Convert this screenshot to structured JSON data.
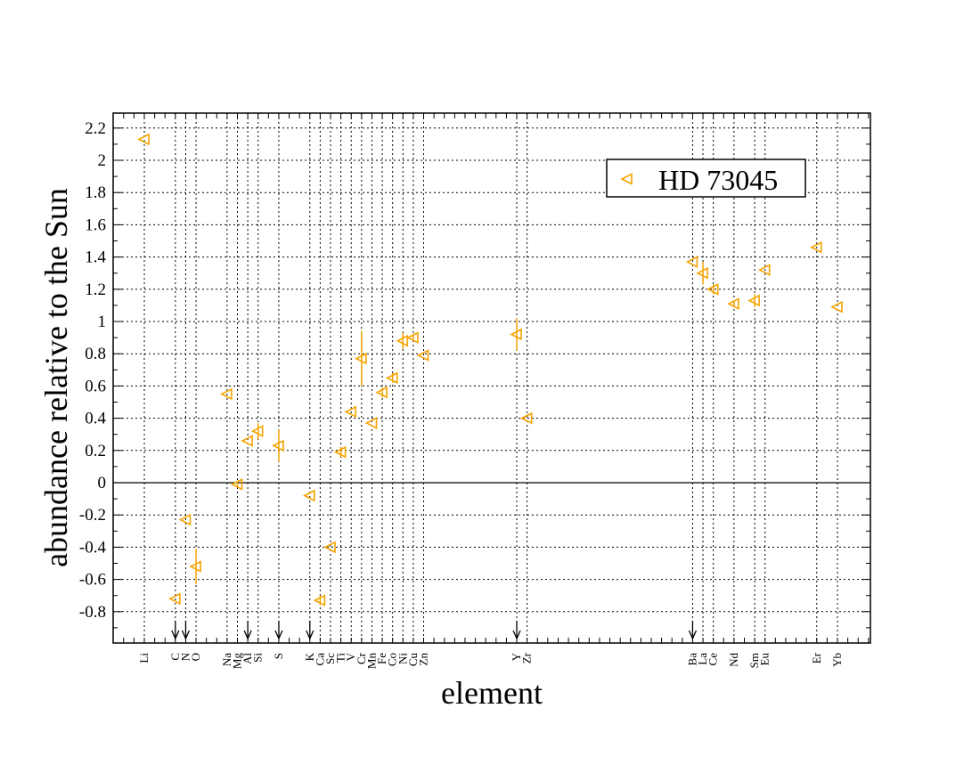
{
  "chart_data": {
    "type": "scatter",
    "xlabel": "element",
    "ylabel": "abundance relative to the Sun",
    "ylim": [
      -1.0,
      2.3
    ],
    "y_ticks": [
      "2.2",
      "2",
      "1.8",
      "1.6",
      "1.4",
      "1.2",
      "1",
      "0.8",
      "0.6",
      "0.4",
      "0.2",
      "0",
      "-0.2",
      "-0.4",
      "-0.6",
      "-0.8"
    ],
    "y_tick_values": [
      2.2,
      2.0,
      1.8,
      1.6,
      1.4,
      1.2,
      1.0,
      0.8,
      0.6,
      0.4,
      0.2,
      0.0,
      -0.2,
      -0.4,
      -0.6,
      -0.8
    ],
    "grid": true,
    "zero_line": true,
    "legend_position": "top-right",
    "series": [
      {
        "name": "HD 73045",
        "color": "#f5a300",
        "marker": "triangle-left-open",
        "points": [
          {
            "element": "C",
            "z": 6,
            "y": -0.72,
            "err": 0.0
          },
          {
            "element": "N",
            "z": 7,
            "y": -0.23,
            "err": 0.0
          },
          {
            "element": "O",
            "z": 8,
            "y": -0.52,
            "err": 0.11
          },
          {
            "element": "Na",
            "z": 11,
            "y": 0.55,
            "err": 0.0
          },
          {
            "element": "Mg",
            "z": 12,
            "y": -0.01,
            "err": 0.02
          },
          {
            "element": "Al",
            "z": 13,
            "y": 0.26,
            "err": 0.0
          },
          {
            "element": "Si",
            "z": 14,
            "y": 0.32,
            "err": 0.05
          },
          {
            "element": "S",
            "z": 16,
            "y": 0.23,
            "err": 0.1
          },
          {
            "element": "K",
            "z": 19,
            "y": -0.08,
            "err": 0.0
          },
          {
            "element": "Ca",
            "z": 20,
            "y": -0.73,
            "err": 0.03
          },
          {
            "element": "Sc",
            "z": 21,
            "y": -0.4,
            "err": 0.0
          },
          {
            "element": "Ti",
            "z": 22,
            "y": 0.19,
            "err": 0.03
          },
          {
            "element": "V",
            "z": 23,
            "y": 0.44,
            "err": 0.0
          },
          {
            "element": "Cr",
            "z": 24,
            "y": 0.77,
            "err": 0.17
          },
          {
            "element": "Mn",
            "z": 25,
            "y": 0.37,
            "err": 0.0
          },
          {
            "element": "Fe",
            "z": 26,
            "y": 0.56,
            "err": 0.03
          },
          {
            "element": "Co",
            "z": 27,
            "y": 0.65,
            "err": 0.03
          },
          {
            "element": "Ni",
            "z": 28,
            "y": 0.88,
            "err": 0.05
          },
          {
            "element": "Cu",
            "z": 29,
            "y": 0.9,
            "err": 0.02
          },
          {
            "element": "Zn",
            "z": 30,
            "y": 0.79,
            "err": 0.0
          },
          {
            "element": "Y",
            "z": 39,
            "y": 0.92,
            "err": 0.1
          },
          {
            "element": "Zr",
            "z": 40,
            "y": 0.4,
            "err": 0.0
          },
          {
            "element": "Ba",
            "z": 56,
            "y": 1.37,
            "err": 0.0
          },
          {
            "element": "La",
            "z": 57,
            "y": 1.3,
            "err": 0.07
          },
          {
            "element": "Ce",
            "z": 58,
            "y": 1.2,
            "err": 0.03
          },
          {
            "element": "Nd",
            "z": 60,
            "y": 1.11,
            "err": 0.02
          },
          {
            "element": "Sm",
            "z": 62,
            "y": 1.13,
            "err": 0.04
          },
          {
            "element": "Eu",
            "z": 63,
            "y": 1.32,
            "err": 0.0
          },
          {
            "element": "Er",
            "z": 68,
            "y": 1.46,
            "err": 0.0
          },
          {
            "element": "Yb",
            "z": 70,
            "y": 1.09,
            "err": 0.0
          },
          {
            "element": "Li",
            "z": 3,
            "y": 2.13,
            "err": 0.0
          }
        ]
      }
    ],
    "x_element_labels": [
      {
        "label": "Li",
        "z": 3
      },
      {
        "label": "C",
        "z": 6
      },
      {
        "label": "N",
        "z": 7
      },
      {
        "label": "O",
        "z": 8
      },
      {
        "label": "Na",
        "z": 11
      },
      {
        "label": "Mg",
        "z": 12
      },
      {
        "label": "Al",
        "z": 13
      },
      {
        "label": "Si",
        "z": 14
      },
      {
        "label": "S",
        "z": 16
      },
      {
        "label": "K",
        "z": 19
      },
      {
        "label": "Ca",
        "z": 20
      },
      {
        "label": "Sc",
        "z": 21
      },
      {
        "label": "Ti",
        "z": 22
      },
      {
        "label": "V",
        "z": 23
      },
      {
        "label": "Cr",
        "z": 24
      },
      {
        "label": "Mn",
        "z": 25
      },
      {
        "label": "Fe",
        "z": 26
      },
      {
        "label": "Co",
        "z": 27
      },
      {
        "label": "Ni",
        "z": 28
      },
      {
        "label": "Cu",
        "z": 29
      },
      {
        "label": "Zn",
        "z": 30
      },
      {
        "label": "Y",
        "z": 39
      },
      {
        "label": "Zr",
        "z": 40
      },
      {
        "label": "Ba",
        "z": 56
      },
      {
        "label": "La",
        "z": 57
      },
      {
        "label": "Ce",
        "z": 58
      },
      {
        "label": "Nd",
        "z": 60
      },
      {
        "label": "Sm",
        "z": 62
      },
      {
        "label": "Eu",
        "z": 63
      },
      {
        "label": "Er",
        "z": 68
      },
      {
        "label": "Yb",
        "z": 70
      }
    ],
    "grid_elements_z": [
      3,
      6,
      7,
      8,
      11,
      12,
      13,
      14,
      16,
      19,
      20,
      21,
      22,
      23,
      24,
      25,
      26,
      27,
      28,
      29,
      30,
      39,
      40,
      56,
      57,
      58,
      60,
      62,
      63,
      68,
      70
    ],
    "arrow_elements_z": [
      6,
      7,
      13,
      16,
      19,
      39,
      56
    ]
  }
}
